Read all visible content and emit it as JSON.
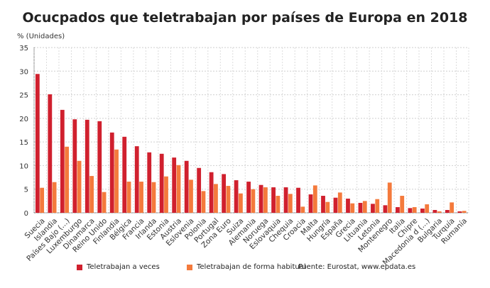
{
  "chart_data": {
    "type": "bar",
    "title": "Ocucpados que teletrabajan por países de Europa en 2018",
    "ylabel": "% (Unidades)",
    "xlabel": "",
    "ylim": [
      0,
      35
    ],
    "yticks": [
      0,
      5,
      10,
      15,
      20,
      25,
      30,
      35
    ],
    "grid": true,
    "legend_position": "bottom",
    "categories": [
      "Suecia",
      "Islandia",
      "Países Bajo (...)",
      "Luxemburgo",
      "Dinamarca",
      "Reino Unido",
      "Finlandia",
      "Bélgica",
      "Francia",
      "Irlanda",
      "Estonia",
      "Austria",
      "Eslovenia",
      "Polonia",
      "Portugal",
      "Zona Euro",
      "Suiza",
      "Alemania",
      "Noruega",
      "Eslovaquia",
      "Chequia",
      "Croacia",
      "Malta",
      "Hungría",
      "España",
      "Grecia",
      "Lituania",
      "Letonia",
      "Montenegro",
      "Italia",
      "Chipre",
      "Macedonia d (...)",
      "Bulgaria",
      "Turquía",
      "Rumanía"
    ],
    "series": [
      {
        "name": "Teletrabajan a veces",
        "color": "#d0202e",
        "values": [
          29.4,
          25.1,
          21.8,
          19.8,
          19.7,
          19.4,
          17.0,
          16.1,
          14.1,
          12.8,
          12.5,
          11.7,
          11.0,
          9.5,
          8.6,
          8.2,
          6.9,
          6.6,
          5.9,
          5.4,
          5.4,
          5.3,
          3.9,
          3.6,
          3.2,
          3.0,
          2.1,
          1.9,
          1.6,
          1.2,
          1.0,
          0.9,
          0.6,
          0.6,
          0.3
        ]
      },
      {
        "name": "Teletrabajan de forma habitual",
        "color": "#f47a3c",
        "values": [
          5.3,
          6.5,
          14.0,
          11.0,
          7.8,
          4.4,
          13.4,
          6.6,
          6.6,
          6.5,
          7.7,
          10.1,
          7.0,
          4.6,
          6.1,
          5.7,
          4.1,
          5.0,
          5.4,
          3.6,
          4.0,
          1.3,
          5.8,
          2.3,
          4.3,
          2.0,
          2.5,
          2.9,
          6.4,
          3.6,
          1.2,
          1.8,
          0.3,
          2.2,
          0.4
        ]
      }
    ],
    "source": "Fuente: Eurostat, www.epdata.es"
  }
}
